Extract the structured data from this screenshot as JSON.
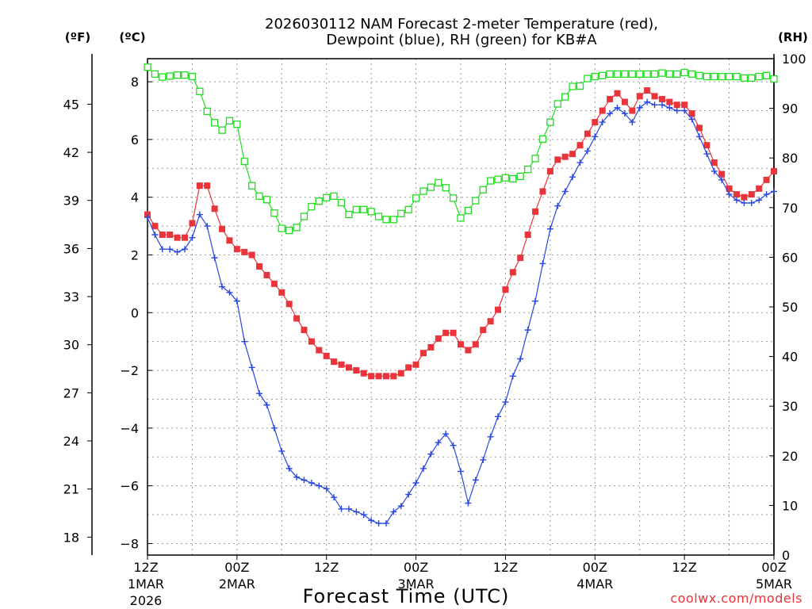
{
  "chart_data": {
    "type": "line",
    "title_line1": "2026030112 NAM Forecast 2-meter Temperature (red),",
    "title_line2": "Dewpoint (blue), RH (green) for KB#A",
    "xlabel": "Forecast Time (UTC)",
    "credit": "coolwx.com/models",
    "units": {
      "fahrenheit": "(ºF)",
      "celsius": "(ºC)",
      "rh": "(RH)"
    },
    "x_range_hours": [
      0,
      84
    ],
    "x_ticks": [
      {
        "hour": 0,
        "line1": "12Z",
        "line2": "1MAR",
        "line3": "2026"
      },
      {
        "hour": 12,
        "line1": "00Z",
        "line2": "2MAR",
        "line3": ""
      },
      {
        "hour": 24,
        "line1": "12Z",
        "line2": "",
        "line3": ""
      },
      {
        "hour": 36,
        "line1": "00Z",
        "line2": "3MAR",
        "line3": ""
      },
      {
        "hour": 48,
        "line1": "12Z",
        "line2": "",
        "line3": ""
      },
      {
        "hour": 60,
        "line1": "00Z",
        "line2": "4MAR",
        "line3": ""
      },
      {
        "hour": 72,
        "line1": "12Z",
        "line2": "",
        "line3": ""
      },
      {
        "hour": 84,
        "line1": "00Z",
        "line2": "5MAR",
        "line3": ""
      }
    ],
    "celsius_axis": {
      "range": [
        -8.4,
        8.8
      ],
      "ticks": [
        "8",
        "6",
        "4",
        "2",
        "0",
        "-2",
        "-4",
        "-6",
        "-8"
      ],
      "tick_values": [
        8,
        6,
        4,
        2,
        0,
        -2,
        -4,
        -6,
        -8
      ]
    },
    "fahrenheit_axis": {
      "ticks": [
        "45",
        "42",
        "39",
        "36",
        "33",
        "30",
        "27",
        "24",
        "21",
        "18"
      ],
      "tick_values": [
        45,
        42,
        39,
        36,
        33,
        30,
        27,
        24,
        21,
        18
      ]
    },
    "rh_axis": {
      "range": [
        0,
        100
      ],
      "ticks": [
        "100",
        "90",
        "80",
        "70",
        "60",
        "50",
        "40",
        "30",
        "20",
        "10",
        "0"
      ],
      "tick_values": [
        100,
        90,
        80,
        70,
        60,
        50,
        40,
        30,
        20,
        10,
        0
      ]
    },
    "series": [
      {
        "name": "2-meter Temperature",
        "axis": "celsius",
        "color": "#e8343a",
        "marker": "filled-square",
        "points": [
          [
            0,
            3.4
          ],
          [
            1,
            3.0
          ],
          [
            2,
            2.7
          ],
          [
            3,
            2.7
          ],
          [
            4,
            2.6
          ],
          [
            5,
            2.6
          ],
          [
            6,
            3.1
          ],
          [
            7,
            4.4
          ],
          [
            8,
            4.4
          ],
          [
            9,
            3.6
          ],
          [
            10,
            2.9
          ],
          [
            11,
            2.5
          ],
          [
            12,
            2.2
          ],
          [
            13,
            2.1
          ],
          [
            14,
            2.0
          ],
          [
            15,
            1.6
          ],
          [
            16,
            1.3
          ],
          [
            17,
            1.0
          ],
          [
            18,
            0.7
          ],
          [
            19,
            0.3
          ],
          [
            20,
            -0.2
          ],
          [
            21,
            -0.6
          ],
          [
            22,
            -1.0
          ],
          [
            23,
            -1.3
          ],
          [
            24,
            -1.5
          ],
          [
            25,
            -1.7
          ],
          [
            26,
            -1.8
          ],
          [
            27,
            -1.9
          ],
          [
            28,
            -2.0
          ],
          [
            29,
            -2.1
          ],
          [
            30,
            -2.2
          ],
          [
            31,
            -2.2
          ],
          [
            32,
            -2.2
          ],
          [
            33,
            -2.2
          ],
          [
            34,
            -2.1
          ],
          [
            35,
            -1.9
          ],
          [
            36,
            -1.8
          ],
          [
            37,
            -1.4
          ],
          [
            38,
            -1.2
          ],
          [
            39,
            -0.9
          ],
          [
            40,
            -0.7
          ],
          [
            41,
            -0.7
          ],
          [
            42,
            -1.1
          ],
          [
            43,
            -1.3
          ],
          [
            44,
            -1.1
          ],
          [
            45,
            -0.6
          ],
          [
            46,
            -0.3
          ],
          [
            47,
            0.1
          ],
          [
            48,
            0.8
          ],
          [
            49,
            1.4
          ],
          [
            50,
            1.9
          ],
          [
            51,
            2.7
          ],
          [
            52,
            3.5
          ],
          [
            53,
            4.2
          ],
          [
            54,
            4.9
          ],
          [
            55,
            5.3
          ],
          [
            56,
            5.4
          ],
          [
            57,
            5.5
          ],
          [
            58,
            5.8
          ],
          [
            59,
            6.2
          ],
          [
            60,
            6.6
          ],
          [
            61,
            7.0
          ],
          [
            62,
            7.4
          ],
          [
            63,
            7.6
          ],
          [
            64,
            7.3
          ],
          [
            65,
            7.0
          ],
          [
            66,
            7.5
          ],
          [
            67,
            7.7
          ],
          [
            68,
            7.5
          ],
          [
            69,
            7.4
          ],
          [
            70,
            7.3
          ],
          [
            71,
            7.2
          ],
          [
            72,
            7.2
          ],
          [
            73,
            6.9
          ],
          [
            74,
            6.4
          ],
          [
            75,
            5.8
          ],
          [
            76,
            5.2
          ],
          [
            77,
            4.8
          ],
          [
            78,
            4.3
          ],
          [
            79,
            4.1
          ],
          [
            80,
            4.0
          ],
          [
            81,
            4.1
          ],
          [
            82,
            4.3
          ],
          [
            83,
            4.6
          ],
          [
            84,
            4.9
          ]
        ]
      },
      {
        "name": "Dewpoint",
        "axis": "celsius",
        "color": "#2747e0",
        "marker": "plus",
        "points": [
          [
            0,
            3.3
          ],
          [
            1,
            2.7
          ],
          [
            2,
            2.2
          ],
          [
            3,
            2.2
          ],
          [
            4,
            2.1
          ],
          [
            5,
            2.2
          ],
          [
            6,
            2.6
          ],
          [
            7,
            3.4
          ],
          [
            8,
            3.0
          ],
          [
            9,
            1.9
          ],
          [
            10,
            0.9
          ],
          [
            11,
            0.7
          ],
          [
            12,
            0.4
          ],
          [
            13,
            -1.0
          ],
          [
            14,
            -1.9
          ],
          [
            15,
            -2.8
          ],
          [
            16,
            -3.2
          ],
          [
            17,
            -4.0
          ],
          [
            18,
            -4.8
          ],
          [
            19,
            -5.4
          ],
          [
            20,
            -5.7
          ],
          [
            21,
            -5.8
          ],
          [
            22,
            -5.9
          ],
          [
            23,
            -6.0
          ],
          [
            24,
            -6.1
          ],
          [
            25,
            -6.4
          ],
          [
            26,
            -6.8
          ],
          [
            27,
            -6.8
          ],
          [
            28,
            -6.9
          ],
          [
            29,
            -7.0
          ],
          [
            30,
            -7.2
          ],
          [
            31,
            -7.3
          ],
          [
            32,
            -7.3
          ],
          [
            33,
            -6.9
          ],
          [
            34,
            -6.7
          ],
          [
            35,
            -6.3
          ],
          [
            36,
            -5.9
          ],
          [
            37,
            -5.4
          ],
          [
            38,
            -4.9
          ],
          [
            39,
            -4.5
          ],
          [
            40,
            -4.2
          ],
          [
            41,
            -4.6
          ],
          [
            42,
            -5.5
          ],
          [
            43,
            -6.6
          ],
          [
            44,
            -5.8
          ],
          [
            45,
            -5.1
          ],
          [
            46,
            -4.3
          ],
          [
            47,
            -3.6
          ],
          [
            48,
            -3.1
          ],
          [
            49,
            -2.2
          ],
          [
            50,
            -1.6
          ],
          [
            51,
            -0.6
          ],
          [
            52,
            0.4
          ],
          [
            53,
            1.7
          ],
          [
            54,
            2.9
          ],
          [
            55,
            3.7
          ],
          [
            56,
            4.2
          ],
          [
            57,
            4.7
          ],
          [
            58,
            5.2
          ],
          [
            59,
            5.6
          ],
          [
            60,
            6.1
          ],
          [
            61,
            6.6
          ],
          [
            62,
            6.9
          ],
          [
            63,
            7.1
          ],
          [
            64,
            6.9
          ],
          [
            65,
            6.6
          ],
          [
            66,
            7.1
          ],
          [
            67,
            7.3
          ],
          [
            68,
            7.2
          ],
          [
            69,
            7.2
          ],
          [
            70,
            7.1
          ],
          [
            71,
            7.0
          ],
          [
            72,
            7.0
          ],
          [
            73,
            6.7
          ],
          [
            74,
            6.1
          ],
          [
            75,
            5.5
          ],
          [
            76,
            4.9
          ],
          [
            77,
            4.6
          ],
          [
            78,
            4.1
          ],
          [
            79,
            3.9
          ],
          [
            80,
            3.8
          ],
          [
            81,
            3.8
          ],
          [
            82,
            3.9
          ],
          [
            83,
            4.1
          ],
          [
            84,
            4.2
          ]
        ]
      },
      {
        "name": "RH",
        "axis": "rh",
        "color": "#22dd22",
        "marker": "open-square",
        "points": [
          [
            0,
            98.3
          ],
          [
            1,
            96.9
          ],
          [
            2,
            96.3
          ],
          [
            3,
            96.5
          ],
          [
            4,
            96.7
          ],
          [
            5,
            96.7
          ],
          [
            6,
            96.4
          ],
          [
            7,
            93.4
          ],
          [
            8,
            89.4
          ],
          [
            9,
            87.1
          ],
          [
            10,
            85.6
          ],
          [
            11,
            87.5
          ],
          [
            12,
            86.8
          ],
          [
            13,
            79.3
          ],
          [
            14,
            74.4
          ],
          [
            15,
            72.3
          ],
          [
            16,
            71.6
          ],
          [
            17,
            68.9
          ],
          [
            18,
            65.8
          ],
          [
            19,
            65.4
          ],
          [
            20,
            66.0
          ],
          [
            21,
            68.2
          ],
          [
            22,
            70.2
          ],
          [
            23,
            71.3
          ],
          [
            24,
            72.0
          ],
          [
            25,
            72.3
          ],
          [
            26,
            71.0
          ],
          [
            27,
            68.6
          ],
          [
            28,
            69.6
          ],
          [
            29,
            69.6
          ],
          [
            30,
            69.2
          ],
          [
            31,
            68.2
          ],
          [
            32,
            67.6
          ],
          [
            33,
            67.6
          ],
          [
            34,
            68.8
          ],
          [
            35,
            69.6
          ],
          [
            36,
            71.9
          ],
          [
            37,
            73.3
          ],
          [
            38,
            74.1
          ],
          [
            39,
            75.0
          ],
          [
            40,
            74.0
          ],
          [
            41,
            71.9
          ],
          [
            42,
            67.9
          ],
          [
            43,
            69.4
          ],
          [
            44,
            71.4
          ],
          [
            45,
            73.6
          ],
          [
            46,
            75.4
          ],
          [
            47,
            75.7
          ],
          [
            48,
            76.0
          ],
          [
            49,
            75.8
          ],
          [
            50,
            76.3
          ],
          [
            51,
            77.7
          ],
          [
            52,
            79.9
          ],
          [
            53,
            83.8
          ],
          [
            54,
            87.2
          ],
          [
            55,
            90.9
          ],
          [
            56,
            92.3
          ],
          [
            57,
            94.4
          ],
          [
            58,
            94.5
          ],
          [
            59,
            96.0
          ],
          [
            60,
            96.4
          ],
          [
            61,
            96.6
          ],
          [
            62,
            96.9
          ],
          [
            63,
            96.9
          ],
          [
            64,
            96.9
          ],
          [
            65,
            96.9
          ],
          [
            66,
            96.9
          ],
          [
            67,
            96.9
          ],
          [
            68,
            96.9
          ],
          [
            69,
            97.1
          ],
          [
            70,
            96.9
          ],
          [
            71,
            96.9
          ],
          [
            72,
            97.2
          ],
          [
            73,
            96.9
          ],
          [
            74,
            96.6
          ],
          [
            75,
            96.4
          ],
          [
            76,
            96.4
          ],
          [
            77,
            96.4
          ],
          [
            78,
            96.4
          ],
          [
            79,
            96.4
          ],
          [
            80,
            96.1
          ],
          [
            81,
            96.1
          ],
          [
            82,
            96.4
          ],
          [
            83,
            96.6
          ],
          [
            84,
            95.9
          ]
        ]
      }
    ]
  }
}
